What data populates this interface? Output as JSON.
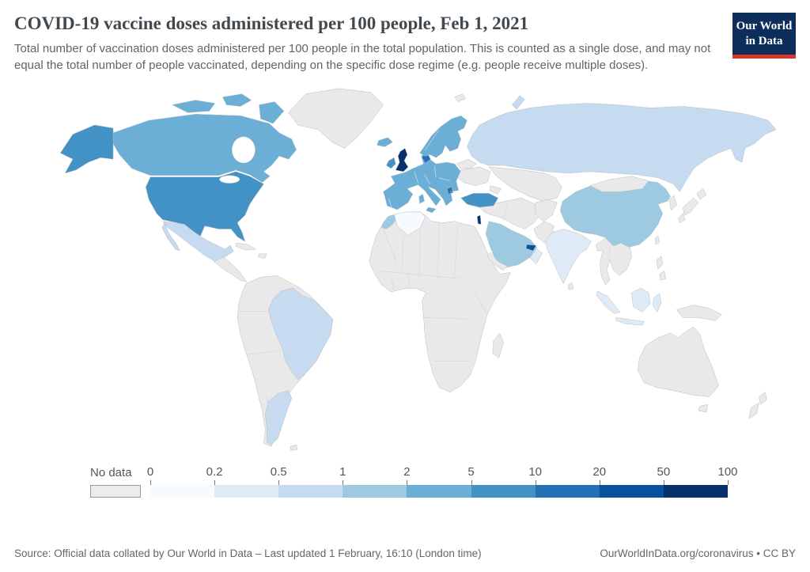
{
  "header": {
    "title": "COVID-19 vaccine doses administered per 100 people, Feb 1, 2021",
    "subtitle": "Total number of vaccination doses administered per 100 people in the total population. This is counted as a single dose, and may not equal the total number of people vaccinated, depending on the specific dose regime (e.g. people receive multiple doses).",
    "logo": {
      "line1": "Our World",
      "line2": "in Data",
      "bg_color": "#0d2e5a",
      "text_color": "#ffffff",
      "accent_color": "#d7352c"
    }
  },
  "legend": {
    "no_data_label": "No data",
    "no_data_color": "#ececec",
    "no_data_border": "#9a9a9a",
    "tick_labels": [
      "0",
      "0.2",
      "0.5",
      "1",
      "2",
      "5",
      "10",
      "20",
      "50",
      "100"
    ],
    "segment_colors": [
      "#f7fbff",
      "#deebf7",
      "#c6dbef",
      "#9ecae1",
      "#6baed6",
      "#4292c6",
      "#2171b5",
      "#08519c",
      "#08306b"
    ]
  },
  "chart_data": {
    "type": "heatmap",
    "subtype": "world-choropleth",
    "title": "COVID-19 vaccine doses administered per 100 people",
    "date": "Feb 1, 2021",
    "unit": "doses administered per 100 people",
    "scale": {
      "ticks": [
        0,
        0.2,
        0.5,
        1,
        2,
        5,
        10,
        20,
        50,
        100
      ],
      "colors": [
        "#f7fbff",
        "#deebf7",
        "#c6dbef",
        "#9ecae1",
        "#6baed6",
        "#4292c6",
        "#2171b5",
        "#08519c",
        "#08306b"
      ]
    },
    "no_data_color": "#e9e9e9",
    "region_colors": {
      "canada": "#6baed6",
      "alaska": "#4292c6",
      "usa": "#4292c6",
      "mexico": "#c6dbef",
      "brazil": "#c6dbef",
      "argentina": "#c6dbef",
      "europe-main": "#6baed6",
      "denmark": "#2171b5",
      "serbia": "#2171b5",
      "sicily": "#6baed6",
      "sardinia": "#6baed6",
      "uk": "#08306b",
      "ireland": "#4292c6",
      "iceland": "#6baed6",
      "scandinavia": "#6baed6",
      "russia": "#c6dbef",
      "novaya-zemlya": "#c6dbef",
      "turkey": "#4292c6",
      "saudi-arabia": "#9ecae1",
      "uae": "#08519c",
      "oman": "#deebf7",
      "israel": "#08306b",
      "morocco": "#9ecae1",
      "algeria": "#f7fbff",
      "india": "#deebf7",
      "sri-lanka": "#deebf7",
      "china": "#9ecae1",
      "sumatra": "#deebf7",
      "java": "#deebf7",
      "borneo": "#deebf7",
      "sulawesi": "#deebf7"
    },
    "regions": [
      {
        "name": "United Kingdom",
        "value_bucket": "50-100"
      },
      {
        "name": "Israel",
        "value_bucket": "50-100"
      },
      {
        "name": "United Arab Emirates",
        "value_bucket": "20-50"
      },
      {
        "name": "Denmark",
        "value_bucket": "10-20"
      },
      {
        "name": "Serbia",
        "value_bucket": "10-20"
      },
      {
        "name": "United States",
        "value_bucket": "5-10"
      },
      {
        "name": "Ireland",
        "value_bucket": "5-10"
      },
      {
        "name": "Turkey",
        "value_bucket": "5-10"
      },
      {
        "name": "Canada",
        "value_bucket": "2-5"
      },
      {
        "name": "European Union (most members)",
        "value_bucket": "2-5"
      },
      {
        "name": "Norway, Sweden, Finland, Iceland",
        "value_bucket": "2-5"
      },
      {
        "name": "China",
        "value_bucket": "1-2"
      },
      {
        "name": "Saudi Arabia",
        "value_bucket": "1-2"
      },
      {
        "name": "Morocco",
        "value_bucket": "1-2"
      },
      {
        "name": "Russia",
        "value_bucket": "0.5-1"
      },
      {
        "name": "Brazil",
        "value_bucket": "0.5-1"
      },
      {
        "name": "Argentina",
        "value_bucket": "0.5-1"
      },
      {
        "name": "Mexico",
        "value_bucket": "0.5-1"
      },
      {
        "name": "India",
        "value_bucket": "0.2-0.5"
      },
      {
        "name": "Indonesia",
        "value_bucket": "0.2-0.5"
      },
      {
        "name": "Oman",
        "value_bucket": "0.2-0.5"
      },
      {
        "name": "Sri Lanka",
        "value_bucket": "0.2-0.5"
      },
      {
        "name": "Algeria",
        "value_bucket": "0-0.2"
      },
      {
        "name": "Most of Africa, Australia, Japan, Central Asia, Ukraine",
        "value_bucket": "no-data"
      }
    ]
  },
  "footer": {
    "source": "Source: Official data collated by Our World in Data – Last updated 1 February, 16:10 (London time)",
    "attribution": "OurWorldInData.org/coronavirus • CC BY"
  }
}
